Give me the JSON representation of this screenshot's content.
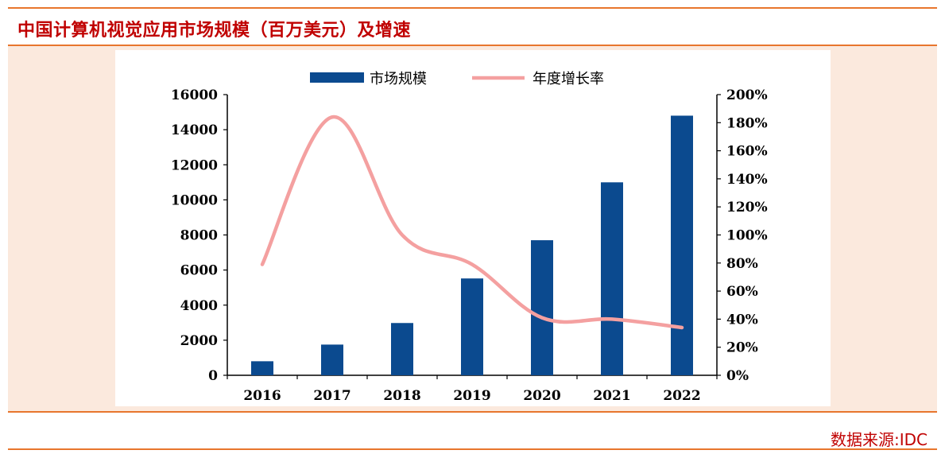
{
  "page": {
    "title": "中国计算机视觉应用市场规模（百万美元）及增速",
    "source": "数据来源:IDC",
    "accent_color": "#e8762d",
    "title_color": "#c00000"
  },
  "chart_data": {
    "type": "bar+line",
    "categories": [
      "2016",
      "2017",
      "2018",
      "2019",
      "2020",
      "2021",
      "2022"
    ],
    "series": [
      {
        "name": "市场规模",
        "type": "bar",
        "axis": "left",
        "color": "#0b4a8f",
        "values": [
          800,
          1750,
          2980,
          5520,
          7700,
          11000,
          14800
        ]
      },
      {
        "name": "年度增长率",
        "type": "line",
        "axis": "right",
        "color": "#f4a0a0",
        "values": [
          0.79,
          1.84,
          1.0,
          0.79,
          0.41,
          0.4,
          0.34
        ]
      }
    ],
    "y_left": {
      "min": 0,
      "max": 16000,
      "ticks": [
        "0",
        "2000",
        "4000",
        "6000",
        "8000",
        "10000",
        "12000",
        "14000",
        "16000"
      ]
    },
    "y_right": {
      "min": 0,
      "max": 2.0,
      "ticks": [
        "0%",
        "20%",
        "40%",
        "60%",
        "80%",
        "100%",
        "120%",
        "140%",
        "160%",
        "180%",
        "200%"
      ]
    },
    "legend_position": "top-center",
    "grid": false
  }
}
